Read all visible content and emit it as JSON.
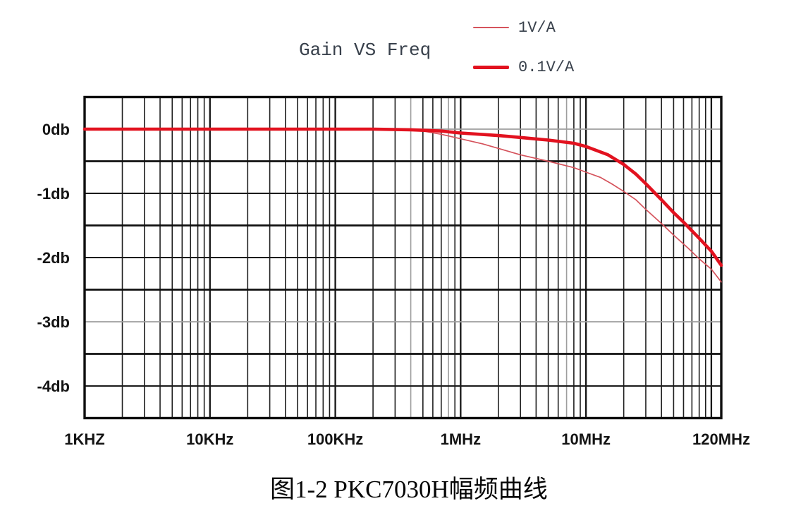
{
  "title": "Gain VS Freq",
  "legend": {
    "items": [
      {
        "label": "1V/A",
        "weight": "thin"
      },
      {
        "label": "0.1V/A",
        "weight": "thick"
      }
    ]
  },
  "caption": "图1-2 PKC7030H幅频曲线",
  "colors": {
    "series_thin": "#d5535c",
    "series_thick": "#e2121f",
    "grid_dark": "#1a1a1a",
    "grid_gray": "#9e9e9e",
    "border": "#0e0e0e",
    "axis_text": "#141414",
    "title_text": "#39414c"
  },
  "chart_data": {
    "type": "line",
    "title": "Gain VS Freq",
    "x_scale": "log",
    "x_range_hz": [
      1000,
      120000000
    ],
    "y_range_db": [
      -4.5,
      0.5
    ],
    "grid": "on",
    "legend_position": "top-right",
    "x_ticks": [
      {
        "hz": 1000,
        "label": "1KHZ"
      },
      {
        "hz": 10000,
        "label": "10KHz"
      },
      {
        "hz": 100000,
        "label": "100KHz"
      },
      {
        "hz": 1000000,
        "label": "1MHz"
      },
      {
        "hz": 10000000,
        "label": "10MHz"
      },
      {
        "hz": 120000000,
        "label": "120MHz"
      }
    ],
    "y_ticks": [
      {
        "db": 0,
        "label": "0db"
      },
      {
        "db": -1,
        "label": "-1db"
      },
      {
        "db": -2,
        "label": "-2db"
      },
      {
        "db": -3,
        "label": "-3db"
      },
      {
        "db": -4,
        "label": "-4db"
      }
    ],
    "gray_gridlines_db": [
      0,
      -3
    ],
    "series": [
      {
        "name": "1V/A",
        "weight": "thin",
        "points": [
          [
            1000,
            0
          ],
          [
            100000,
            0
          ],
          [
            300000,
            0
          ],
          [
            500000,
            -0.03
          ],
          [
            700000,
            -0.08
          ],
          [
            1000000,
            -0.15
          ],
          [
            1500000,
            -0.23
          ],
          [
            2000000,
            -0.3
          ],
          [
            3000000,
            -0.4
          ],
          [
            5000000,
            -0.5
          ],
          [
            8000000,
            -0.6
          ],
          [
            10000000,
            -0.67
          ],
          [
            13000000,
            -0.75
          ],
          [
            16000000,
            -0.85
          ],
          [
            20000000,
            -0.97
          ],
          [
            25000000,
            -1.1
          ],
          [
            30000000,
            -1.25
          ],
          [
            40000000,
            -1.47
          ],
          [
            50000000,
            -1.65
          ],
          [
            65000000,
            -1.85
          ],
          [
            80000000,
            -2.02
          ],
          [
            100000000,
            -2.18
          ],
          [
            120000000,
            -2.38
          ]
        ]
      },
      {
        "name": "0.1V/A",
        "weight": "thick",
        "points": [
          [
            1000,
            0
          ],
          [
            200000,
            0
          ],
          [
            400000,
            -0.01
          ],
          [
            700000,
            -0.03
          ],
          [
            1000000,
            -0.06
          ],
          [
            2000000,
            -0.1
          ],
          [
            3000000,
            -0.13
          ],
          [
            5000000,
            -0.17
          ],
          [
            8000000,
            -0.22
          ],
          [
            10000000,
            -0.27
          ],
          [
            15000000,
            -0.4
          ],
          [
            20000000,
            -0.55
          ],
          [
            25000000,
            -0.7
          ],
          [
            30000000,
            -0.85
          ],
          [
            40000000,
            -1.1
          ],
          [
            50000000,
            -1.3
          ],
          [
            60000000,
            -1.45
          ],
          [
            80000000,
            -1.7
          ],
          [
            100000000,
            -1.9
          ],
          [
            120000000,
            -2.12
          ]
        ]
      }
    ]
  }
}
